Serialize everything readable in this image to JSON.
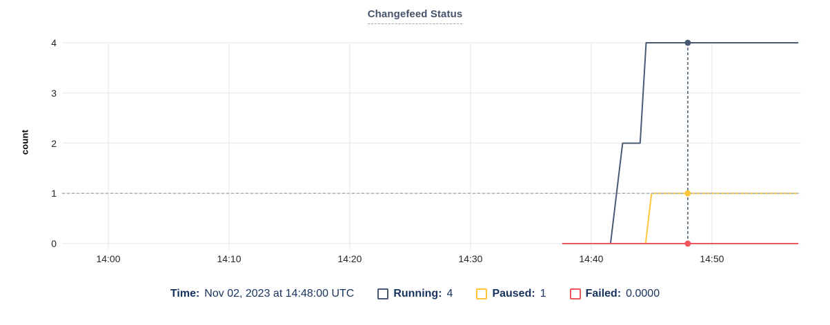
{
  "title": "Changefeed Status",
  "y_axis_label": "count",
  "legend": {
    "time_label": "Time:",
    "time_value": "Nov 02, 2023 at 14:48:00 UTC"
  },
  "colors": {
    "running": "#475872",
    "paused": "#ffc53a",
    "failed": "#f2555c",
    "grid": "#ededef",
    "hover_guide_horizontal": "#9fb1bb",
    "hover_guide_vertical": "#4e6070",
    "legend_text": "#16325c",
    "title_text": "#46536b"
  },
  "chart_data": {
    "type": "line",
    "step": true,
    "title": "Changefeed Status",
    "xlabel": "",
    "ylabel": "count",
    "ylim": [
      0,
      4
    ],
    "grid": true,
    "legend_position": "bottom",
    "x_domain_minutes_after_1400": [
      -3.83,
      57.15
    ],
    "x_ticks": [
      {
        "minute": 0,
        "label": "14:00"
      },
      {
        "minute": 10,
        "label": "14:10"
      },
      {
        "minute": 20,
        "label": "14:20"
      },
      {
        "minute": 30,
        "label": "14:30"
      },
      {
        "minute": 40,
        "label": "14:40"
      },
      {
        "minute": 50,
        "label": "14:50"
      }
    ],
    "y_ticks": [
      {
        "value": 0,
        "label": "0"
      },
      {
        "value": 1,
        "label": "1"
      },
      {
        "value": 2,
        "label": "2"
      },
      {
        "value": 3,
        "label": "3"
      },
      {
        "value": 4,
        "label": "4"
      }
    ],
    "hover": {
      "minute": 48,
      "time": "Nov 02, 2023 at 14:48:00 UTC",
      "horizontal_guide_value": 1
    },
    "series": [
      {
        "name": "Running",
        "legend_label": "Running:",
        "hover_value": "4",
        "color": "#475872",
        "points": [
          [
            37.6,
            0
          ],
          [
            41.6,
            0
          ],
          [
            42.6,
            2
          ],
          [
            44.05,
            2
          ],
          [
            44.55,
            4
          ],
          [
            57.15,
            4
          ]
        ]
      },
      {
        "name": "Paused",
        "legend_label": "Paused:",
        "hover_value": "1",
        "color": "#ffc53a",
        "points": [
          [
            37.6,
            0
          ],
          [
            44.5,
            0
          ],
          [
            45.0,
            1
          ],
          [
            57.15,
            1
          ]
        ]
      },
      {
        "name": "Failed",
        "legend_label": "Failed:",
        "hover_value": "0.0000",
        "color": "#f2555c",
        "points": [
          [
            37.6,
            0
          ],
          [
            57.15,
            0
          ]
        ]
      }
    ]
  }
}
